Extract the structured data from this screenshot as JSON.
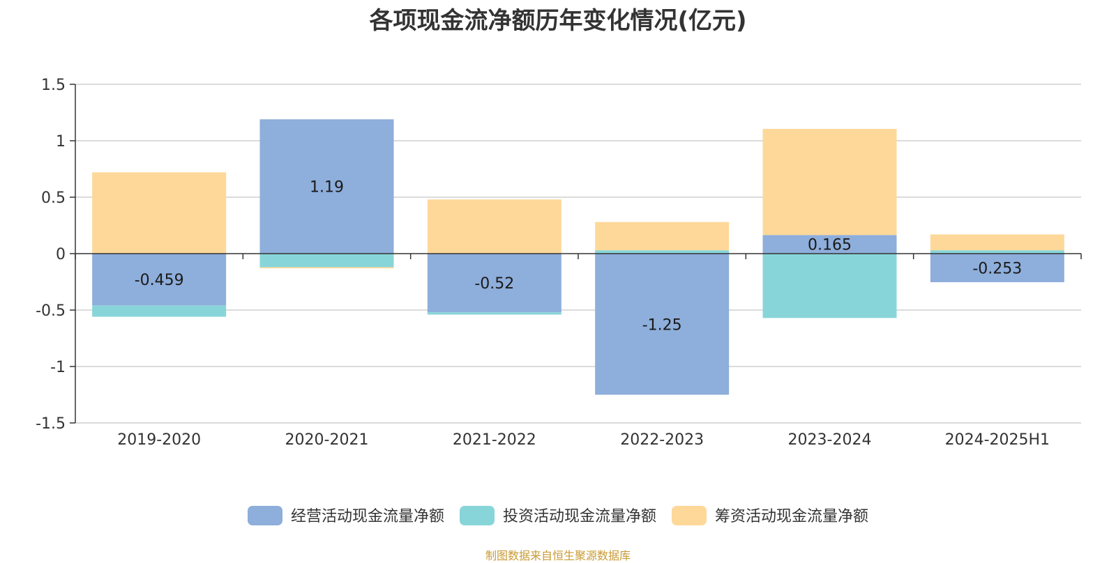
{
  "chart_data": {
    "type": "bar",
    "stacked": true,
    "title": "各项现金流净额历年变化情况(亿元)",
    "categories": [
      "2019-2020",
      "2020-2021",
      "2021-2022",
      "2022-2023",
      "2023-2024",
      "2024-2025H1"
    ],
    "series": [
      {
        "name": "经营活动现金流量净额",
        "color": "#8eaedb",
        "values": [
          -0.459,
          1.19,
          -0.52,
          -1.25,
          0.165,
          -0.253
        ],
        "labels": [
          "-0.459",
          "1.19",
          "-0.52",
          "-1.25",
          "0.165",
          "-0.253"
        ]
      },
      {
        "name": "投资活动现金流量净额",
        "color": "#88d5d9",
        "values": [
          -0.1,
          -0.12,
          -0.02,
          0.03,
          -0.57,
          0.03
        ]
      },
      {
        "name": "筹资活动现金流量净额",
        "color": "#fed899",
        "values": [
          0.72,
          -0.01,
          0.48,
          0.25,
          0.94,
          0.14
        ]
      }
    ],
    "ylim": [
      -1.5,
      1.5
    ],
    "yticks": [
      1.5,
      1,
      0.5,
      0,
      -0.5,
      -1,
      -1.5
    ],
    "ytick_labels": [
      "1.5",
      "1",
      "0.5",
      "0",
      "-0.5",
      "-1",
      "-1.5"
    ],
    "grid": true,
    "legend_position": "bottom"
  },
  "footer": {
    "source": "制图数据来自恒生聚源数据库"
  }
}
